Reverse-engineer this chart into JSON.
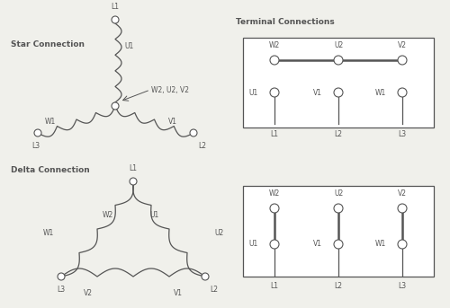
{
  "background_color": "#f0f0eb",
  "line_color": "#555555",
  "title_star": "Star Connection",
  "title_delta": "Delta Connection",
  "title_terminal": "Terminal Connections",
  "font_size_title": 6.5,
  "font_size_label": 5.5
}
